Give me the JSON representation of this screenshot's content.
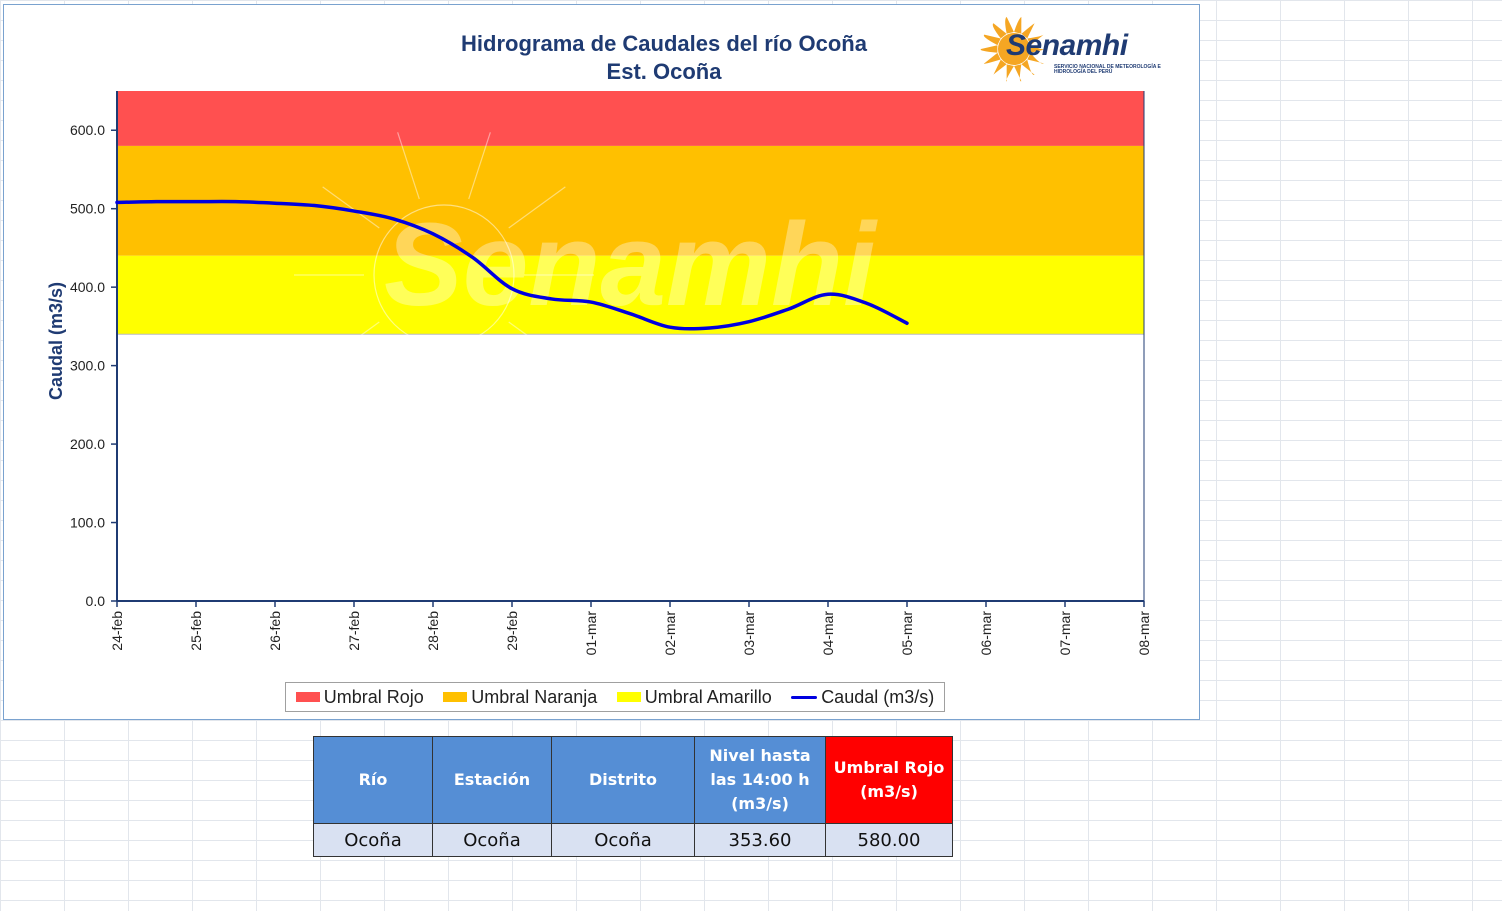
{
  "chart_data": {
    "type": "line",
    "title": "Hidrograma de Caudales del río Ocoña",
    "subtitle": "Est. Ocoña",
    "ylabel": "Caudal (m3/s)",
    "xlabel": "",
    "ylim": [
      0,
      650
    ],
    "y_ticks": [
      "0.0",
      "100.0",
      "200.0",
      "300.0",
      "400.0",
      "500.0",
      "600.0"
    ],
    "categories": [
      "24-feb",
      "25-feb",
      "26-feb",
      "27-feb",
      "28-feb",
      "29-feb",
      "01-mar",
      "02-mar",
      "03-mar",
      "04-mar",
      "05-mar",
      "06-mar",
      "07-mar",
      "08-mar"
    ],
    "bands": [
      {
        "name": "Umbral Rojo",
        "from": 580,
        "to": 650,
        "color": "#ff5050"
      },
      {
        "name": "Umbral Naranja",
        "from": 440,
        "to": 580,
        "color": "#ffc000"
      },
      {
        "name": "Umbral Amarillo",
        "from": 340,
        "to": 440,
        "color": "#ffff00"
      }
    ],
    "series": [
      {
        "name": "Caudal (m3/s)",
        "color": "#0000e0",
        "x": [
          0,
          0.5,
          1,
          1.5,
          2,
          2.5,
          3,
          3.5,
          4,
          4.5,
          5,
          5.5,
          6,
          6.5,
          7,
          7.5,
          8,
          8.5,
          9,
          9.5,
          10
        ],
        "values": [
          508,
          509,
          509,
          509,
          507,
          504,
          497,
          487,
          468,
          438,
          398,
          385,
          381,
          366,
          349,
          348,
          356,
          372,
          391,
          379,
          354
        ]
      }
    ],
    "grid": false,
    "legend_position": "bottom"
  },
  "logo": {
    "name": "Senamhi",
    "subtitle": "SERVICIO NACIONAL DE METEOROLOGÍA E HIDROLOGÍA DEL PERÚ",
    "color": "#1f3b73",
    "sun_color": "#f5a623"
  },
  "watermark": "Senamhi",
  "table": {
    "headers": [
      "Río",
      "Estación",
      "Distrito",
      "Nivel hasta las 14:00 h (m3/s)",
      "Umbral Rojo (m3/s)"
    ],
    "row": [
      "Ocoña",
      "Ocoña",
      "Ocoña",
      "353.60",
      "580.00"
    ]
  }
}
